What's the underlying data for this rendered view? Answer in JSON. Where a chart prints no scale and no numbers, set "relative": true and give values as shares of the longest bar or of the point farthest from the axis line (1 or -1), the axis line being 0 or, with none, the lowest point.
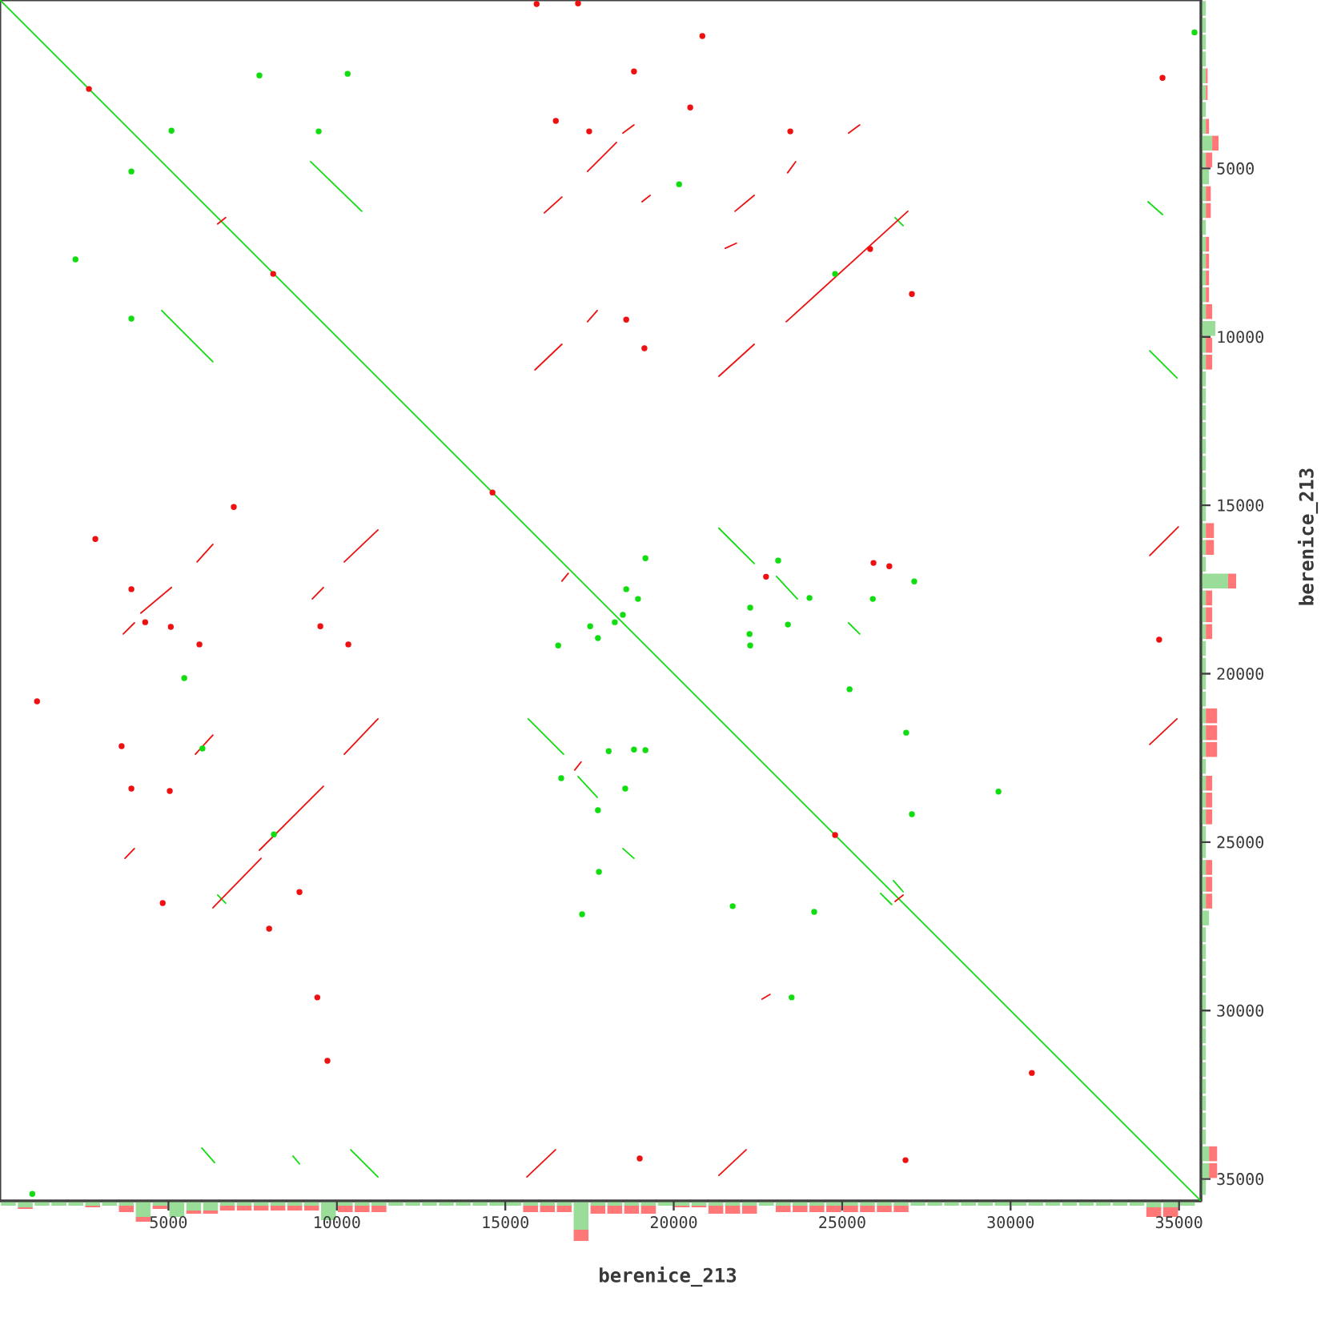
{
  "chart_data": [
    {
      "type": "line",
      "xlabel": "berenice_213",
      "ylabel": "berenice_213",
      "xlim": [
        0,
        35650
      ],
      "ylim": [
        35650,
        0
      ],
      "xticks": [
        5000,
        10000,
        15000,
        20000,
        25000,
        30000,
        35000
      ],
      "yticks": [
        5000,
        10000,
        15000,
        20000,
        25000,
        30000,
        35000
      ],
      "series": [
        {
          "color": "#11dd11",
          "x": [
            0,
            35650
          ],
          "values": [
            0,
            35650
          ]
        },
        {
          "color": "#11dd11",
          "x": [
            4800,
            6320,
            null,
            6460,
            6700,
            null,
            8700,
            8890,
            null,
            9220,
            10740,
            null,
            15680,
            16730,
            null,
            17160,
            17730,
            null,
            18490,
            18820,
            null,
            21340,
            22390,
            null,
            23050,
            23670,
            null,
            25190,
            25520,
            null,
            26140,
            26470,
            null,
            26570,
            26810,
            null,
            34080,
            34510
          ],
          "values": [
            9220,
            10740,
            null,
            26570,
            26810,
            null,
            34320,
            34550,
            null,
            4800,
            6270,
            null,
            21340,
            22390,
            null,
            23050,
            23670,
            null,
            25190,
            25480,
            null,
            15680,
            16730,
            null,
            17110,
            17780,
            null,
            18490,
            18820,
            null,
            26520,
            26850,
            null,
            6460,
            6700,
            null,
            5990,
            6370
          ]
        },
        {
          "color": "#11dd11",
          "x": [
            5990,
            6370,
            null,
            10410,
            11220,
            null,
            26520,
            26810,
            null,
            34130,
            34940
          ],
          "values": [
            34080,
            34510,
            null,
            34130,
            34940,
            null,
            26140,
            26470,
            null,
            10410,
            11220
          ]
        },
        {
          "color": "#ee1111",
          "x": [
            3660,
            3990,
            null,
            4180,
            5090,
            null,
            5800,
            6320,
            null,
            6460,
            6700,
            null,
            7700,
            9600,
            null,
            10220,
            11220,
            null,
            15640,
            16490,
            null,
            16680,
            16870,
            null,
            17060,
            17250,
            null,
            17440,
            18300,
            null,
            18490,
            18820,
            null,
            19060,
            19300,
            null,
            21340,
            22390,
            null,
            22620,
            22860,
            null,
            23340,
            26950,
            null,
            34130,
            34980
          ],
          "values": [
            18820,
            18490,
            null,
            18200,
            17440,
            null,
            22390,
            21820,
            null,
            6650,
            6460,
            null,
            25240,
            23340,
            null,
            16680,
            15730,
            null,
            34940,
            34130,
            null,
            17250,
            17020,
            null,
            22860,
            22620,
            null,
            5090,
            4230,
            null,
            3950,
            3710,
            null,
            5990,
            5800,
            null,
            11170,
            10220,
            null,
            29660,
            29520,
            null,
            9550,
            6270,
            null,
            16490,
            15640
          ]
        },
        {
          "color": "#ee1111",
          "x": [
            3710,
            3990,
            null,
            5850,
            6320,
            null,
            9270,
            9600,
            null,
            10220,
            11220,
            null,
            15880,
            16680,
            null,
            17440,
            17730,
            null,
            21340,
            22150,
            null,
            23380,
            23620,
            null,
            25190,
            25520,
            null,
            26570,
            26810,
            null,
            34130,
            34940
          ],
          "values": [
            25480,
            25190,
            null,
            16680,
            16160,
            null,
            17780,
            17440,
            null,
            22390,
            21340,
            null,
            10980,
            10220,
            null,
            9550,
            9220,
            null,
            34890,
            34130,
            null,
            5130,
            4800,
            null,
            3950,
            3710,
            null,
            26760,
            26570,
            null,
            22100,
            21340
          ]
        },
        {
          "color": "#ee1111",
          "x": [
            6320,
            7750,
            null,
            16160,
            16680,
            null,
            21530,
            21860
          ],
          "values": [
            26950,
            25480,
            null,
            6320,
            5850,
            null,
            7370,
            7220
          ]
        },
        {
          "color": "#ee1111",
          "x": [
            21820,
            22390
          ],
          "values": [
            6270,
            5800
          ]
        },
        {
          "type": "scatter",
          "marker": "circle",
          "color": "#11dd11",
          "x": [
            7700,
            10320,
            5090,
            9460,
            3900,
            2240,
            3900,
            20160,
            24790,
            35460,
            5470,
            6010,
            18070,
            16660,
            17520,
            17750,
            16570,
            17750,
            8130,
            19160,
            23100,
            27140,
            18590,
            18940,
            24030,
            25910,
            18490,
            18250,
            22270,
            23390,
            22250,
            22270,
            25220,
            26900,
            18820,
            19160,
            18560,
            29640,
            27070,
            960,
            17780,
            17280,
            21750,
            24170,
            23500
          ],
          "values": [
            2240,
            2190,
            3880,
            3900,
            5090,
            7700,
            9460,
            5470,
            8130,
            960,
            20130,
            22220,
            22300,
            23100,
            18590,
            18940,
            19160,
            24050,
            24770,
            16570,
            16640,
            17260,
            17490,
            17780,
            17750,
            17780,
            18250,
            18470,
            18040,
            18540,
            18820,
            19160,
            20460,
            21750,
            22250,
            22270,
            23410,
            23500,
            24170,
            35440,
            25880,
            27140,
            26900,
            27070,
            29610
          ]
        },
        {
          "type": "scatter",
          "marker": "circle",
          "color": "#ee1111",
          "x": [
            2640,
            8110,
            15930,
            17160,
            16500,
            17490,
            20850,
            18820,
            20490,
            23460,
            27070,
            18590,
            19130,
            34510,
            14620,
            6940,
            2830,
            3900,
            4310,
            5070,
            9510,
            5920,
            10340,
            1100,
            3610,
            3900,
            5040,
            25930,
            26400,
            22740,
            34410,
            4830,
            8890,
            7990,
            9420,
            9720,
            24790,
            30630,
            18990,
            26880,
            25830
          ],
          "values": [
            2640,
            8130,
            120,
            100,
            3590,
            3900,
            1070,
            2120,
            3190,
            3900,
            8730,
            9490,
            10340,
            2310,
            14620,
            15050,
            16000,
            17490,
            18470,
            18610,
            18590,
            19130,
            19130,
            20820,
            22150,
            23410,
            23480,
            16710,
            16810,
            17120,
            18990,
            26810,
            26480,
            27570,
            29610,
            31490,
            24790,
            31850,
            34390,
            34440,
            7390
          ]
        }
      ]
    },
    {
      "type": "bar",
      "relative": true,
      "stacked": true,
      "xlim": [
        0,
        35650
      ],
      "tick_labels": false,
      "x": [
        250,
        750,
        1250,
        1750,
        2250,
        2750,
        3250,
        3750,
        4250,
        4750,
        5250,
        5750,
        6250,
        6750,
        7250,
        7750,
        8250,
        8750,
        9250,
        9750,
        10250,
        10750,
        11250,
        11750,
        12250,
        12750,
        13250,
        13750,
        14250,
        14750,
        15250,
        15750,
        16250,
        16750,
        17250,
        17750,
        18250,
        18750,
        19250,
        19750,
        20250,
        20750,
        21250,
        21750,
        22250,
        22750,
        23250,
        23750,
        24250,
        24750,
        25250,
        25750,
        26250,
        26750,
        27250,
        27750,
        28250,
        28750,
        29250,
        29750,
        30250,
        30750,
        31250,
        31750,
        32250,
        32750,
        33250,
        33750,
        34250,
        34750,
        35250
      ],
      "series": [
        {
          "color": "#99dd99",
          "values": [
            -0.12,
            -0.16,
            -0.12,
            -0.12,
            -0.12,
            -0.12,
            -0.12,
            -0.12,
            -0.4,
            -0.12,
            -0.4,
            -0.24,
            -0.24,
            -0.12,
            -0.12,
            -0.12,
            -0.12,
            -0.12,
            -0.12,
            -0.48,
            -0.12,
            -0.12,
            -0.12,
            -0.12,
            -0.12,
            -0.12,
            -0.12,
            -0.12,
            -0.12,
            -0.12,
            -0.12,
            -0.12,
            -0.12,
            -0.12,
            -0.72,
            -0.12,
            -0.12,
            -0.12,
            -0.12,
            -0.12,
            -0.12,
            -0.12,
            -0.12,
            -0.12,
            -0.12,
            -0.12,
            -0.12,
            -0.12,
            -0.12,
            -0.12,
            -0.12,
            -0.12,
            -0.12,
            -0.12,
            -0.12,
            -0.12,
            -0.12,
            -0.12,
            -0.12,
            -0.12,
            -0.12,
            -0.12,
            -0.12,
            -0.12,
            -0.12,
            -0.12,
            -0.12,
            -0.12,
            -0.16,
            -0.16,
            -0.12
          ]
        },
        {
          "color": "#ff7777",
          "values": [
            0,
            -0.04,
            0,
            0,
            0,
            -0.04,
            0,
            -0.16,
            -0.12,
            -0.08,
            0,
            -0.08,
            -0.08,
            -0.12,
            -0.12,
            -0.12,
            -0.12,
            -0.12,
            -0.12,
            0,
            -0.16,
            -0.16,
            -0.16,
            0,
            0,
            0,
            0,
            0,
            0,
            0,
            0,
            -0.16,
            -0.16,
            -0.16,
            -0.28,
            -0.2,
            -0.2,
            -0.2,
            -0.2,
            0,
            -0.04,
            -0.04,
            -0.2,
            -0.2,
            -0.2,
            0,
            -0.16,
            -0.16,
            -0.16,
            -0.16,
            -0.16,
            -0.16,
            -0.16,
            -0.16,
            0,
            0,
            0,
            0,
            0,
            0,
            0,
            0,
            0,
            0,
            0,
            0,
            0,
            0,
            -0.24,
            -0.24,
            0
          ]
        }
      ]
    },
    {
      "type": "bar",
      "orientation": "horizontal",
      "relative": true,
      "stacked": true,
      "ylim": [
        35650,
        0
      ],
      "tick_labels": false,
      "x": [
        250,
        750,
        1250,
        1750,
        2250,
        2750,
        3250,
        3750,
        4250,
        4750,
        5250,
        5750,
        6250,
        6750,
        7250,
        7750,
        8250,
        8750,
        9250,
        9750,
        10250,
        10750,
        11250,
        11750,
        12250,
        12750,
        13250,
        13750,
        14250,
        14750,
        15250,
        15750,
        16250,
        16750,
        17250,
        17750,
        18250,
        18750,
        19250,
        19750,
        20250,
        20750,
        21250,
        21750,
        22250,
        22750,
        23250,
        23750,
        24250,
        24750,
        25250,
        25750,
        26250,
        26750,
        27250,
        27750,
        28250,
        28750,
        29250,
        29750,
        30250,
        30750,
        31250,
        31750,
        32250,
        32750,
        33250,
        33750,
        34250,
        34750,
        35250
      ],
      "series": [
        {
          "color": "#99dd99",
          "values": [
            0.14,
            0.14,
            0.14,
            0.14,
            0.14,
            0.14,
            0.14,
            0.14,
            0.32,
            0.14,
            0.23,
            0.14,
            0.14,
            0.14,
            0.14,
            0.14,
            0.14,
            0.14,
            0.14,
            0.41,
            0.14,
            0.14,
            0.14,
            0.14,
            0.14,
            0.14,
            0.14,
            0.14,
            0.14,
            0.14,
            0.14,
            0.14,
            0.14,
            0.14,
            0.77,
            0.14,
            0.14,
            0.14,
            0.14,
            0.14,
            0.14,
            0.14,
            0.14,
            0.14,
            0.14,
            0.14,
            0.14,
            0.14,
            0.14,
            0.14,
            0.14,
            0.14,
            0.14,
            0.14,
            0.23,
            0.14,
            0.14,
            0.14,
            0.14,
            0.14,
            0.14,
            0.14,
            0.14,
            0.14,
            0.14,
            0.14,
            0.14,
            0.14,
            0.23,
            0.23,
            0.14
          ]
        },
        {
          "color": "#ff7777",
          "values": [
            0,
            0,
            0,
            0,
            0.05,
            0.05,
            0,
            0.09,
            0.18,
            0.18,
            0,
            0.14,
            0.14,
            0,
            0.09,
            0.09,
            0.09,
            0.09,
            0.18,
            0,
            0.18,
            0.18,
            0,
            0,
            0,
            0,
            0,
            0,
            0,
            0,
            0,
            0.23,
            0.23,
            0,
            0.23,
            0.18,
            0.18,
            0.18,
            0,
            0,
            0,
            0,
            0.32,
            0.32,
            0.32,
            0,
            0.18,
            0.18,
            0.18,
            0,
            0,
            0.18,
            0.18,
            0.18,
            0,
            0,
            0,
            0,
            0,
            0,
            0,
            0,
            0,
            0,
            0,
            0,
            0,
            0,
            0.23,
            0.23,
            0
          ]
        }
      ]
    }
  ]
}
